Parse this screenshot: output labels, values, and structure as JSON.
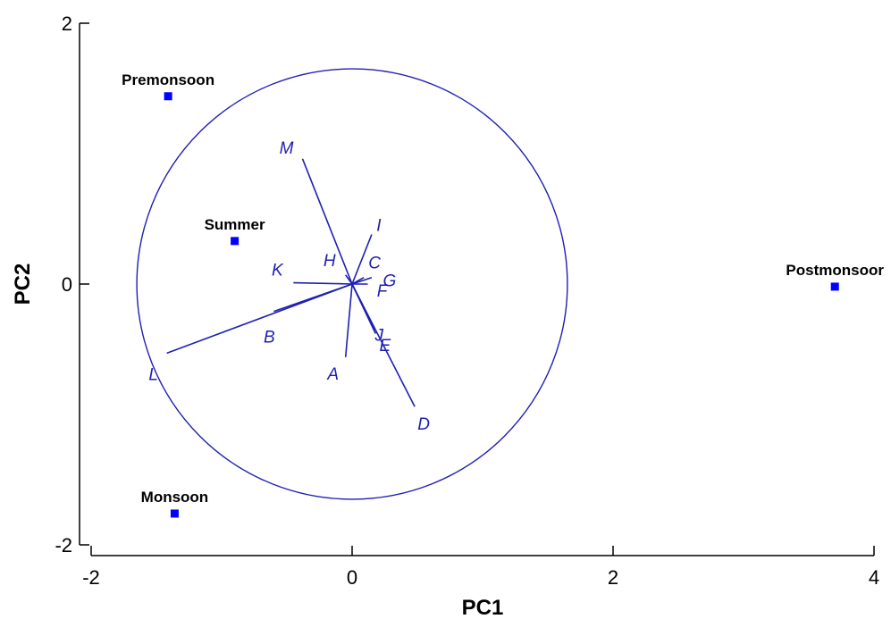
{
  "chart_data": {
    "type": "scatter",
    "title": "",
    "xlabel": "PC1",
    "ylabel": "PC2",
    "xlim": [
      -2,
      4
    ],
    "ylim": [
      -2,
      2
    ],
    "x_ticks": [
      -2,
      0,
      2,
      4
    ],
    "y_ticks": [
      -2,
      0,
      2
    ],
    "x_tick_labels": [
      "-2",
      "0",
      "2",
      "4"
    ],
    "y_tick_labels": [
      "-2",
      "0",
      "2"
    ],
    "grid": false,
    "legend": "none",
    "color": "#1f1fb4",
    "marker_color": "#0000ff",
    "points": [
      {
        "label": "Premonsoon",
        "x": -1.41,
        "y": 1.44
      },
      {
        "label": "Summer",
        "x": -0.9,
        "y": 0.33
      },
      {
        "label": "Monsoon",
        "x": -1.36,
        "y": -1.76
      },
      {
        "label": "Postmonsoor",
        "x": 3.7,
        "y": -0.02
      }
    ],
    "circle": {
      "center": [
        0,
        0
      ],
      "radius": 1.65
    },
    "vectors": [
      {
        "label": "A",
        "x": -0.05,
        "y": -0.56
      },
      {
        "label": "B",
        "x": -0.6,
        "y": -0.21
      },
      {
        "label": "C",
        "x": 0.09,
        "y": 0.05
      },
      {
        "label": "D",
        "x": 0.48,
        "y": -0.94
      },
      {
        "label": "E",
        "x": 0.17,
        "y": -0.35
      },
      {
        "label": "F",
        "x": 0.12,
        "y": 0.0
      },
      {
        "label": "G",
        "x": 0.15,
        "y": 0.05
      },
      {
        "label": "H",
        "x": -0.05,
        "y": 0.07
      },
      {
        "label": "I",
        "x": 0.15,
        "y": 0.38
      },
      {
        "label": "J",
        "x": 0.18,
        "y": -0.38
      },
      {
        "label": "K",
        "x": -0.45,
        "y": 0.01
      },
      {
        "label": "L",
        "x": -1.42,
        "y": -0.53
      },
      {
        "label": "M",
        "x": -0.38,
        "y": 0.96
      }
    ]
  }
}
